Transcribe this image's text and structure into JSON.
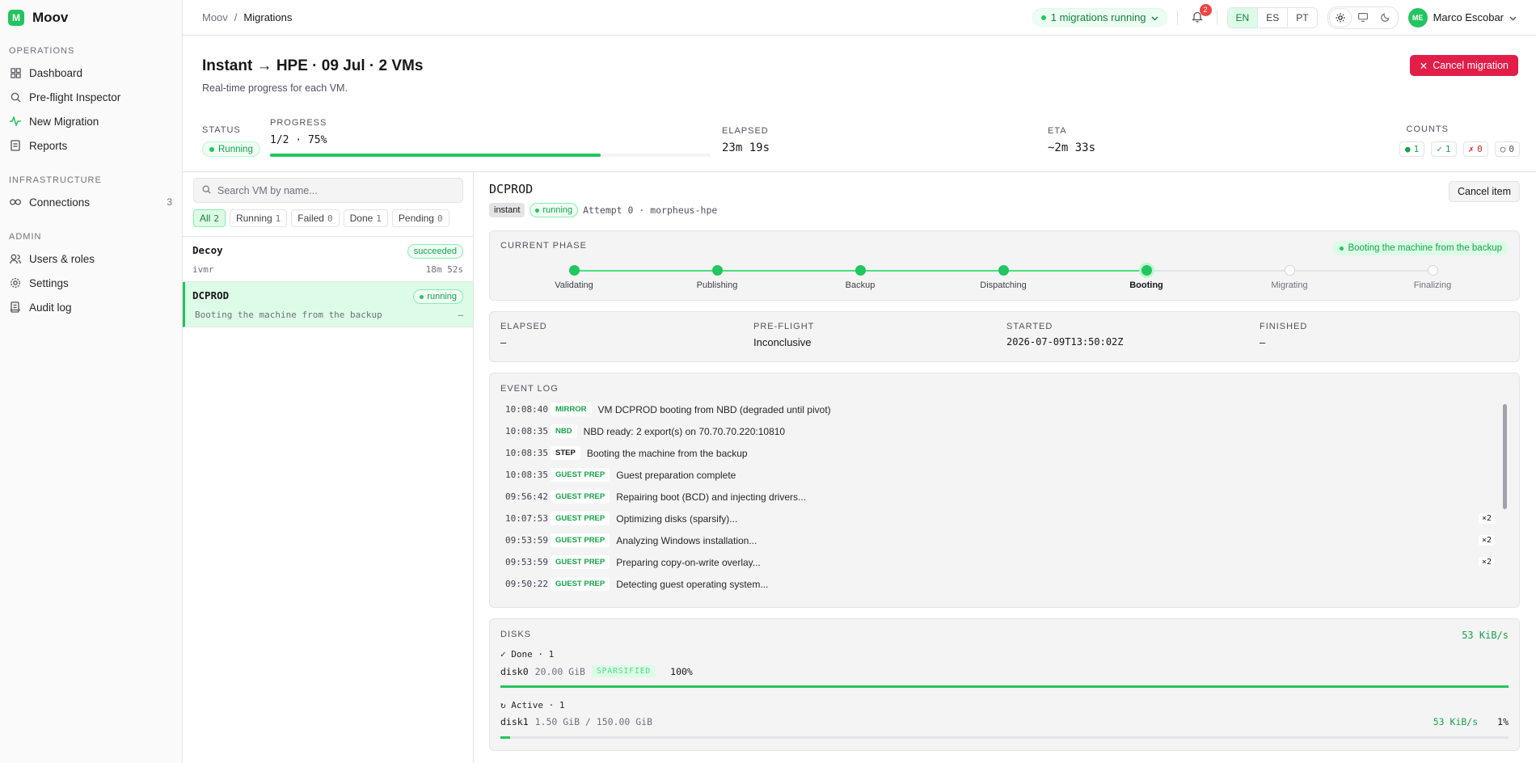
{
  "app": {
    "name": "Moov",
    "logo": "M"
  },
  "sidebar": {
    "sections": [
      {
        "title": "OPERATIONS",
        "items": [
          {
            "label": "Dashboard",
            "icon": "dashboard-icon"
          },
          {
            "label": "Pre-flight Inspector",
            "icon": "search-icon"
          },
          {
            "label": "New Migration",
            "icon": "activity-icon"
          },
          {
            "label": "Reports",
            "icon": "document-icon"
          }
        ]
      },
      {
        "title": "INFRASTRUCTURE",
        "items": [
          {
            "label": "Connections",
            "icon": "link-icon",
            "count": "3"
          }
        ]
      },
      {
        "title": "ADMIN",
        "items": [
          {
            "label": "Users & roles",
            "icon": "users-icon"
          },
          {
            "label": "Settings",
            "icon": "gear-icon"
          },
          {
            "label": "Audit log",
            "icon": "log-icon"
          }
        ]
      }
    ]
  },
  "header": {
    "breadcrumb": {
      "root": "Moov",
      "separator": "/",
      "current": "Migrations"
    },
    "running": "1 migrations running",
    "notifications": "2",
    "languages": [
      "EN",
      "ES",
      "PT"
    ],
    "user": {
      "initials": "ME",
      "name": "Marco Escobar"
    }
  },
  "page": {
    "title": "Instant → HPE · 09 Jul · 2 VMs",
    "subtitle": "Real-time progress for each VM.",
    "cancel_label": "Cancel migration",
    "status_label": "STATUS",
    "status_value": "Running",
    "progress_label": "PROGRESS",
    "progress_value": "1/2 · 75%",
    "progress_fraction": 0.75,
    "elapsed_label": "ELAPSED",
    "elapsed_value": "23m 19s",
    "eta_label": "ETA",
    "eta_value": "~2m 33s",
    "counts_label": "COUNTS",
    "counts": [
      {
        "symbol": "●",
        "value": "1",
        "color": "#16a34a"
      },
      {
        "symbol": "✓",
        "value": "1",
        "color": "#16a34a"
      },
      {
        "symbol": "✗",
        "value": "0",
        "color": "#dc2626"
      },
      {
        "symbol": "○",
        "value": "0",
        "color": "#52525b"
      }
    ]
  },
  "vm_panel": {
    "search_placeholder": "Search VM by name...",
    "filters": [
      {
        "label": "All",
        "count": "2"
      },
      {
        "label": "Running",
        "count": "1"
      },
      {
        "label": "Failed",
        "count": "0"
      },
      {
        "label": "Done",
        "count": "1"
      },
      {
        "label": "Pending",
        "count": "0"
      }
    ],
    "vms": [
      {
        "name": "Decoy",
        "status": "succeeded",
        "sub": "ivmr",
        "right": "18m 52s"
      },
      {
        "name": "DCPROD",
        "status": "running",
        "sub": "Booting the machine from the backup",
        "right": "–"
      }
    ]
  },
  "detail": {
    "name": "DCPROD",
    "tag_mode": "instant",
    "tag_status": "running",
    "attempt": "Attempt 0 · morpheus-hpe",
    "cancel_item": "Cancel item",
    "phase_label": "CURRENT PHASE",
    "phase_pill": "Booting the machine from the backup",
    "phases": [
      "Validating",
      "Publishing",
      "Backup",
      "Dispatching",
      "Booting",
      "Migrating",
      "Finalizing"
    ],
    "current_phase_index": 4,
    "info": [
      {
        "label": "ELAPSED",
        "value": "–"
      },
      {
        "label": "PRE-FLIGHT",
        "value": "Inconclusive"
      },
      {
        "label": "STARTED",
        "value": "2026-07-09T13:50:02Z"
      },
      {
        "label": "FINISHED",
        "value": "–"
      }
    ],
    "log_label": "EVENT LOG",
    "events": [
      {
        "time": "10:08:40",
        "tag": "MIRROR",
        "msg": "VM DCPROD booting from NBD (degraded until pivot)",
        "x": ""
      },
      {
        "time": "10:08:35",
        "tag": "NBD",
        "msg": "NBD ready: 2 export(s) on 70.70.70.220:10810",
        "x": ""
      },
      {
        "time": "10:08:35",
        "tag": "STEP",
        "msg": "Booting the machine from the backup",
        "x": ""
      },
      {
        "time": "10:08:35",
        "tag": "GUEST PREP",
        "msg": "Guest preparation complete",
        "x": ""
      },
      {
        "time": "09:56:42",
        "tag": "GUEST PREP",
        "msg": "Repairing boot (BCD) and injecting drivers...",
        "x": ""
      },
      {
        "time": "10:07:53",
        "tag": "GUEST PREP",
        "msg": "Optimizing disks (sparsify)...",
        "x": "×2"
      },
      {
        "time": "09:53:59",
        "tag": "GUEST PREP",
        "msg": "Analyzing Windows installation...",
        "x": "×2"
      },
      {
        "time": "09:53:59",
        "tag": "GUEST PREP",
        "msg": "Preparing copy-on-write overlay...",
        "x": "×2"
      },
      {
        "time": "09:50:22",
        "tag": "GUEST PREP",
        "msg": "Detecting guest operating system...",
        "x": ""
      }
    ],
    "disks": {
      "label": "DISKS",
      "speed": "53 KiB/s",
      "done_label": "✓ Done · 1",
      "active_label": "↻ Active · 1",
      "done": {
        "name": "disk0",
        "size": "20.00 GiB",
        "badge": "SPARSIFIED",
        "pct": "100%",
        "fraction": 1.0
      },
      "active": {
        "name": "disk1",
        "size": "1.50 GiB / 150.00 GiB",
        "speed": "53 KiB/s",
        "pct": "1%",
        "fraction": 0.01
      }
    }
  }
}
